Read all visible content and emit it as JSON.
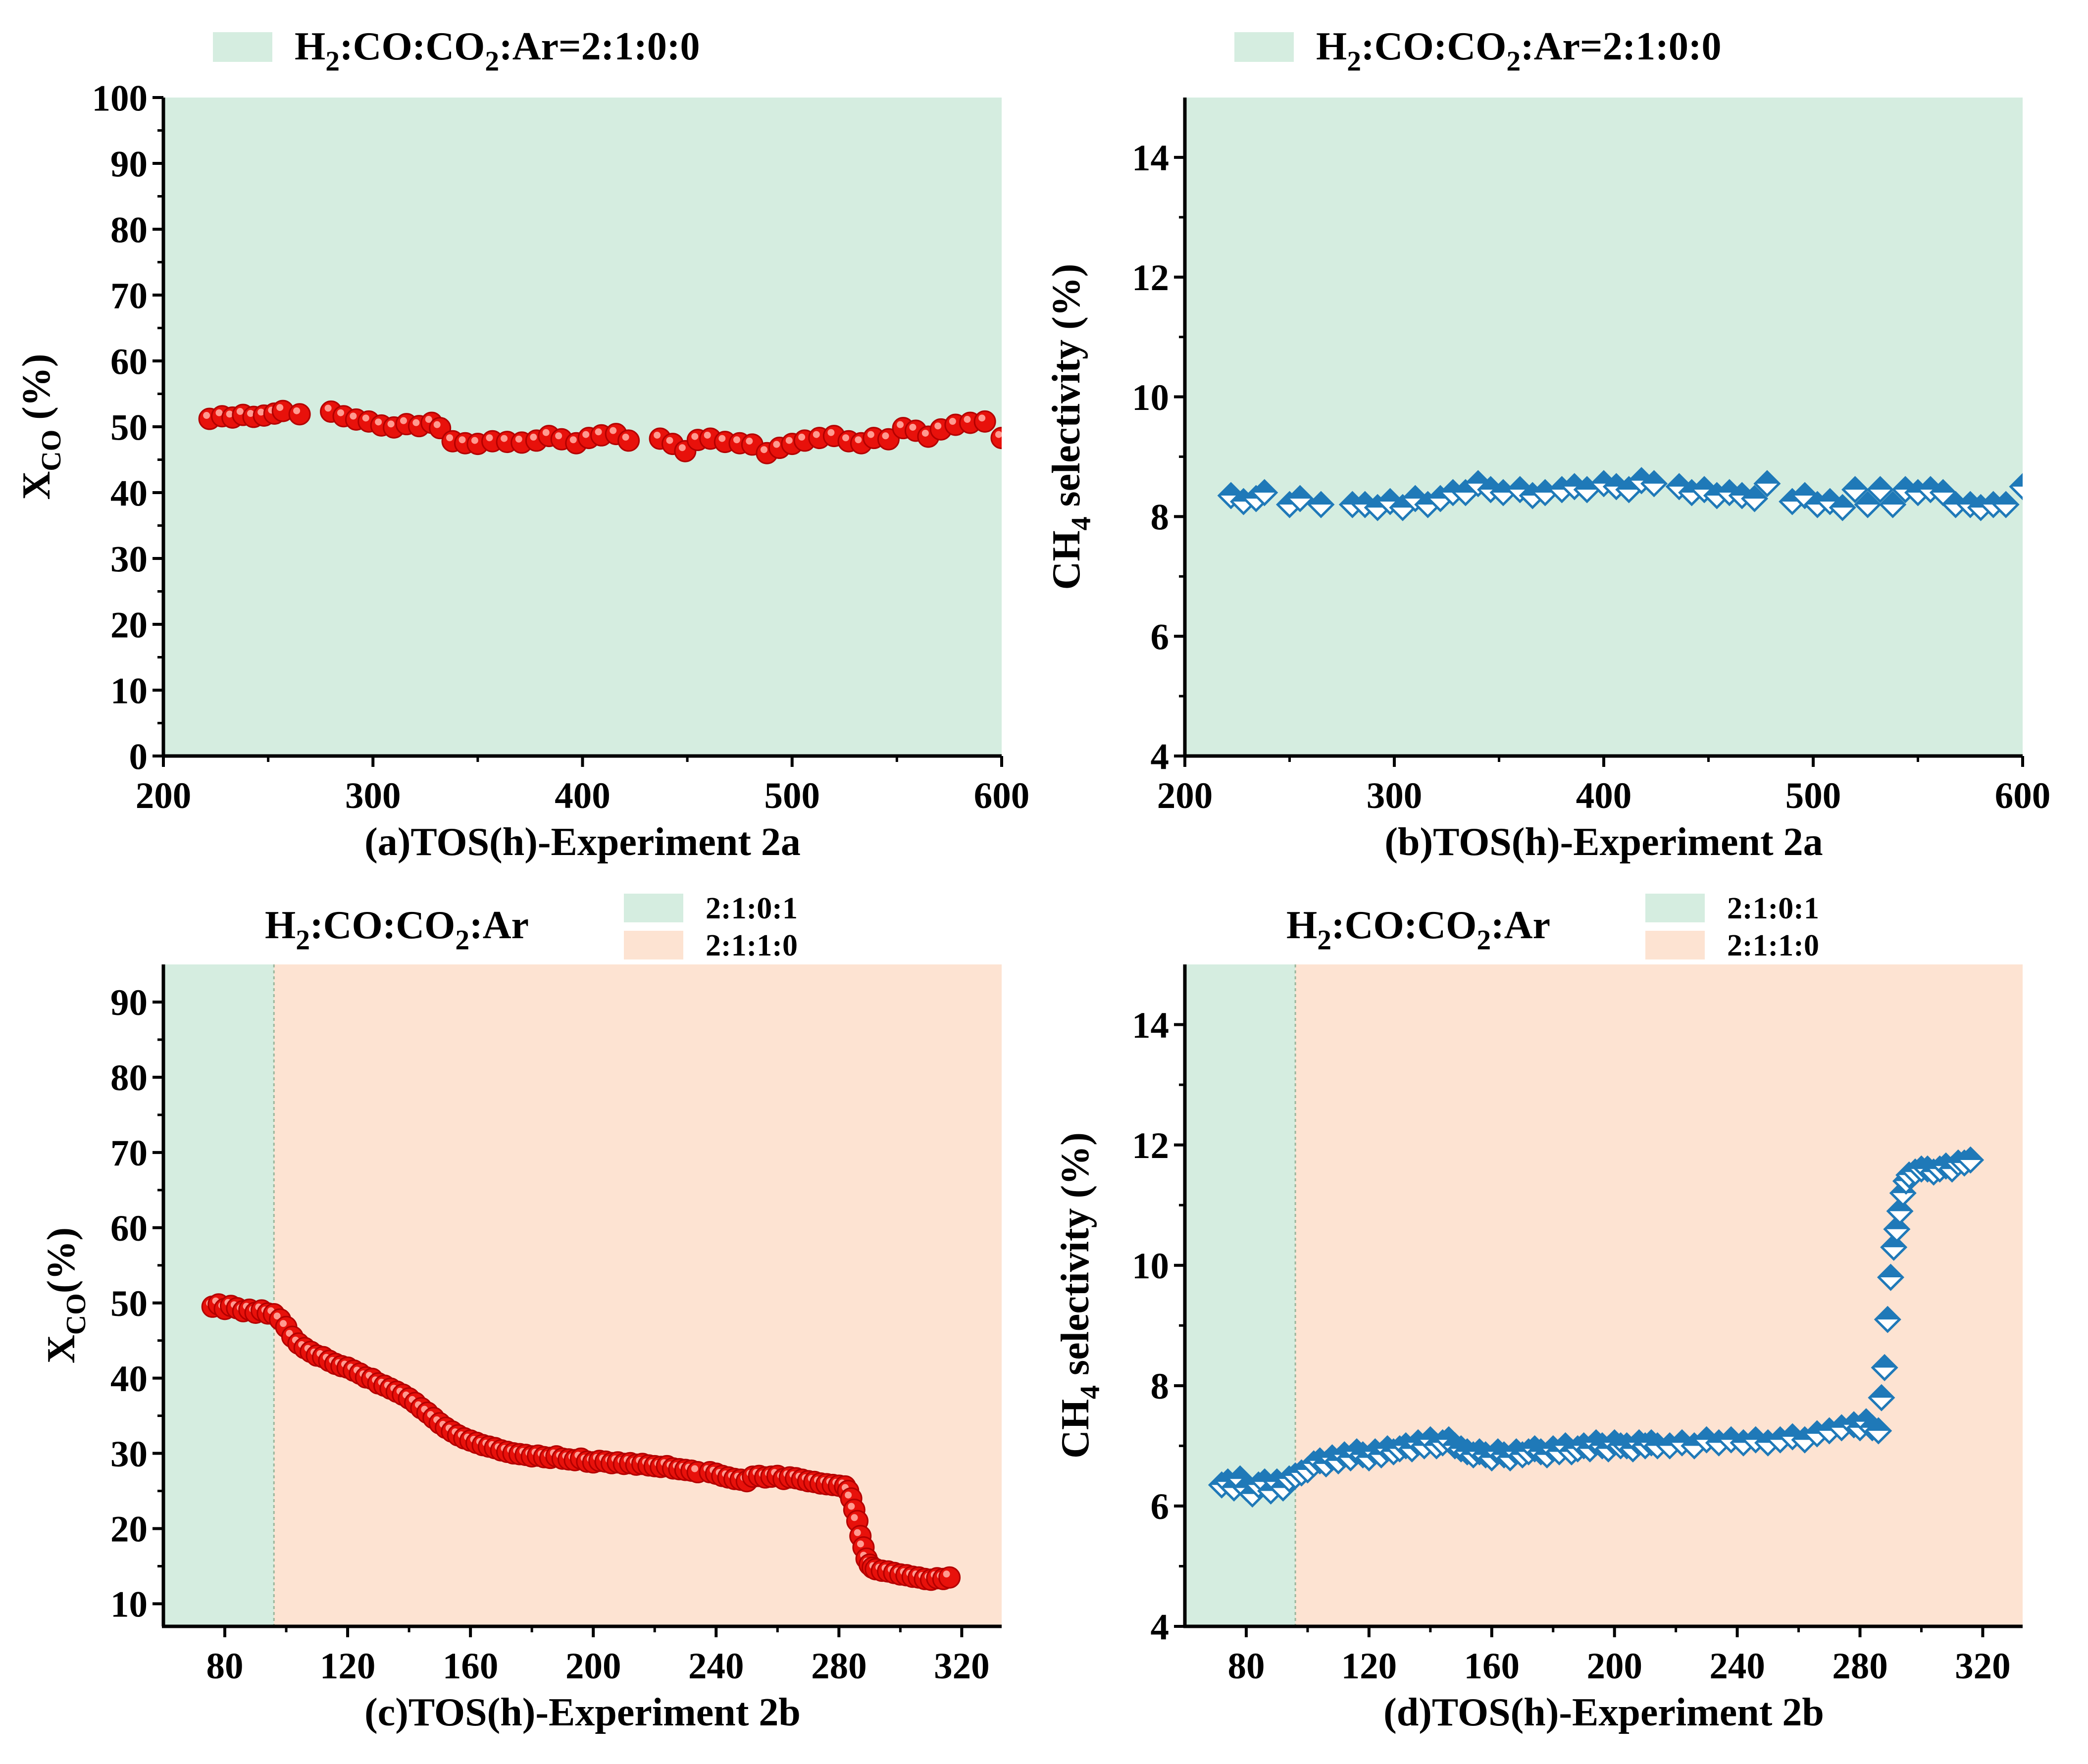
{
  "figure_title": "",
  "colors": {
    "green_region": "#d5ede0",
    "orange_region": "#fde3d2",
    "red_marker": "#e8110b",
    "red_marker_light": "#ff9a90",
    "blue_marker": "#1f79b8",
    "axis": "#000000"
  },
  "chart_data": [
    {
      "id": "a",
      "type": "scatter",
      "marker": "circle",
      "xlabel": "(a)TOS(h)-Experiment 2a",
      "ylabel_main": "X",
      "ylabel_sub": "CO",
      "ylabel_tail": " (%)",
      "xlim": [
        200,
        600
      ],
      "ylim": [
        0,
        100
      ],
      "xticks": [
        200,
        300,
        400,
        500,
        600
      ],
      "yticks": [
        0,
        10,
        20,
        30,
        40,
        50,
        60,
        70,
        80,
        90,
        100
      ],
      "legend": {
        "style": "single",
        "prefix": "",
        "entries": [
          {
            "label": "H2:CO:CO2:Ar=2:1:0:0",
            "color": "green"
          }
        ]
      },
      "regions": [
        {
          "from": 200,
          "to": 600,
          "color": "green"
        }
      ],
      "series": [
        {
          "name": "X_CO",
          "x": [
            222,
            228,
            233,
            238,
            243,
            248,
            253,
            257,
            265,
            280,
            286,
            292,
            298,
            304,
            310,
            316,
            322,
            328,
            332,
            338,
            344,
            350,
            357,
            364,
            371,
            378,
            384,
            390,
            397,
            403,
            409,
            416,
            422,
            437,
            443,
            449,
            455,
            461,
            468,
            475,
            481,
            488,
            494,
            500,
            506,
            513,
            520,
            527,
            533,
            539,
            546,
            553,
            559,
            565,
            571,
            578,
            585,
            592,
            600
          ],
          "y": [
            51.2,
            51.6,
            51.4,
            51.8,
            51.5,
            51.7,
            52.0,
            52.4,
            51.9,
            52.3,
            51.6,
            51.1,
            50.8,
            50.2,
            49.9,
            50.4,
            50.1,
            50.6,
            49.8,
            47.8,
            47.5,
            47.4,
            47.8,
            47.7,
            47.6,
            47.9,
            48.6,
            48.1,
            47.5,
            48.3,
            48.7,
            48.9,
            47.9,
            48.2,
            47.4,
            46.3,
            48.0,
            48.2,
            47.7,
            47.5,
            47.3,
            46.0,
            46.8,
            47.4,
            47.9,
            48.3,
            48.6,
            47.8,
            47.5,
            48.3,
            48.1,
            49.8,
            49.4,
            48.5,
            49.6,
            50.3,
            50.6,
            50.8,
            48.3
          ]
        }
      ]
    },
    {
      "id": "b",
      "type": "scatter",
      "marker": "diamond",
      "xlabel": "(b)TOS(h)-Experiment 2a",
      "ylabel_main": "CH",
      "ylabel_sub": "4",
      "ylabel_tail": "  selectivity (%)",
      "xlim": [
        200,
        600
      ],
      "ylim": [
        4,
        15
      ],
      "xticks": [
        200,
        300,
        400,
        500,
        600
      ],
      "yticks": [
        4,
        6,
        8,
        10,
        12,
        14
      ],
      "legend": {
        "style": "single",
        "prefix": "",
        "entries": [
          {
            "label": "H2:CO:CO2:Ar=2:1:0:0",
            "color": "green"
          }
        ]
      },
      "regions": [
        {
          "from": 200,
          "to": 600,
          "color": "green"
        }
      ],
      "series": [
        {
          "name": "CH4 selectivity",
          "x": [
            222,
            228,
            234,
            238,
            250,
            255,
            265,
            280,
            286,
            292,
            298,
            304,
            310,
            316,
            322,
            328,
            334,
            340,
            346,
            352,
            360,
            366,
            372,
            380,
            386,
            392,
            400,
            406,
            412,
            418,
            424,
            436,
            442,
            448,
            454,
            460,
            466,
            472,
            478,
            490,
            496,
            502,
            508,
            514,
            520,
            526,
            532,
            538,
            544,
            550,
            556,
            562,
            568,
            575,
            580,
            586,
            592,
            600
          ],
          "y": [
            8.35,
            8.25,
            8.3,
            8.4,
            8.2,
            8.3,
            8.2,
            8.2,
            8.2,
            8.15,
            8.25,
            8.15,
            8.3,
            8.2,
            8.3,
            8.4,
            8.4,
            8.55,
            8.45,
            8.4,
            8.45,
            8.35,
            8.4,
            8.45,
            8.5,
            8.45,
            8.55,
            8.5,
            8.45,
            8.6,
            8.55,
            8.5,
            8.4,
            8.45,
            8.35,
            8.4,
            8.35,
            8.3,
            8.55,
            8.25,
            8.35,
            8.2,
            8.25,
            8.15,
            8.45,
            8.2,
            8.45,
            8.2,
            8.45,
            8.4,
            8.45,
            8.4,
            8.2,
            8.2,
            8.15,
            8.2,
            8.2,
            8.5
          ]
        }
      ]
    },
    {
      "id": "c",
      "type": "scatter",
      "marker": "circle",
      "xlabel": "(c)TOS(h)-Experiment 2b",
      "ylabel_main": "X",
      "ylabel_sub": "CO",
      "ylabel_tail": "(%)",
      "xlim": [
        60,
        333
      ],
      "ylim": [
        7,
        95
      ],
      "xticks": [
        80,
        120,
        160,
        200,
        240,
        280,
        320
      ],
      "yticks": [
        10,
        20,
        30,
        40,
        50,
        60,
        70,
        80,
        90
      ],
      "legend": {
        "style": "stacked",
        "prefix": "H2:CO:CO2:Ar",
        "entries": [
          {
            "label": "2:1:0:1",
            "color": "green"
          },
          {
            "label": "2:1:1:0",
            "color": "orange"
          }
        ]
      },
      "regions": [
        {
          "from": 60,
          "to": 96,
          "color": "green"
        },
        {
          "from": 96,
          "to": 333,
          "color": "orange"
        }
      ],
      "series": [
        {
          "name": "X_CO",
          "x": [
            76,
            78,
            80,
            82,
            84,
            86,
            88,
            90,
            92,
            94,
            96,
            98,
            100,
            102,
            104,
            106,
            108,
            110,
            112,
            114,
            116,
            118,
            120,
            122,
            124,
            126,
            128,
            130,
            132,
            134,
            136,
            138,
            140,
            142,
            144,
            146,
            148,
            150,
            152,
            154,
            156,
            158,
            160,
            162,
            164,
            166,
            168,
            170,
            172,
            174,
            176,
            178,
            180,
            182,
            184,
            186,
            188,
            190,
            192,
            194,
            196,
            198,
            200,
            202,
            204,
            206,
            208,
            210,
            212,
            214,
            216,
            218,
            220,
            222,
            224,
            226,
            228,
            230,
            232,
            234,
            238,
            240,
            242,
            244,
            246,
            248,
            250,
            252,
            254,
            256,
            258,
            260,
            262,
            264,
            266,
            268,
            270,
            272,
            274,
            276,
            278,
            280,
            282,
            283,
            284,
            285,
            286,
            287,
            288,
            289,
            290,
            291,
            292,
            294,
            296,
            298,
            300,
            302,
            304,
            306,
            308,
            310,
            312,
            314,
            316
          ],
          "y": [
            49.5,
            49.8,
            49.2,
            49.6,
            49.3,
            48.9,
            49.1,
            48.7,
            49.0,
            48.6,
            48.5,
            47.8,
            46.8,
            45.5,
            44.6,
            44.0,
            43.5,
            43.0,
            42.8,
            42.3,
            41.9,
            41.6,
            41.4,
            41.0,
            40.6,
            40.1,
            39.9,
            39.3,
            39.0,
            38.6,
            38.2,
            37.8,
            37.3,
            36.7,
            36.0,
            35.4,
            34.7,
            34.0,
            33.4,
            32.9,
            32.4,
            32.0,
            31.7,
            31.4,
            31.1,
            30.9,
            30.7,
            30.4,
            30.2,
            30.0,
            29.9,
            29.8,
            29.6,
            29.7,
            29.5,
            29.4,
            29.6,
            29.3,
            29.2,
            29.1,
            29.3,
            28.9,
            28.8,
            29.0,
            28.9,
            28.7,
            28.8,
            28.6,
            28.7,
            28.5,
            28.6,
            28.4,
            28.3,
            28.2,
            28.3,
            28.0,
            27.9,
            27.8,
            27.7,
            27.5,
            27.5,
            27.3,
            27.0,
            26.8,
            26.6,
            26.5,
            26.3,
            26.9,
            27.0,
            26.8,
            26.9,
            27.0,
            26.6,
            26.8,
            26.7,
            26.5,
            26.3,
            26.2,
            26.0,
            25.9,
            25.8,
            25.7,
            25.6,
            25.0,
            24.0,
            22.5,
            21.0,
            19.0,
            17.5,
            16.0,
            15.2,
            14.8,
            14.6,
            14.4,
            14.3,
            14.1,
            13.9,
            13.8,
            13.6,
            13.5,
            13.3,
            13.2,
            13.4,
            13.3,
            13.5
          ]
        }
      ]
    },
    {
      "id": "d",
      "type": "scatter",
      "marker": "diamond",
      "xlabel": "(d)TOS(h)-Experiment 2b",
      "ylabel_main": "CH",
      "ylabel_sub": "4",
      "ylabel_tail": "  selectivity (%)",
      "xlim": [
        60,
        333
      ],
      "ylim": [
        4,
        15
      ],
      "xticks": [
        80,
        120,
        160,
        200,
        240,
        280,
        320
      ],
      "yticks": [
        4,
        6,
        8,
        10,
        12,
        14
      ],
      "legend": {
        "style": "stacked",
        "prefix": "H2:CO:CO2:Ar",
        "entries": [
          {
            "label": "2:1:0:1",
            "color": "green"
          },
          {
            "label": "2:1:1:0",
            "color": "orange"
          }
        ]
      },
      "regions": [
        {
          "from": 60,
          "to": 96,
          "color": "green"
        },
        {
          "from": 96,
          "to": 333,
          "color": "orange"
        }
      ],
      "series": [
        {
          "name": "CH4 selectivity",
          "x": [
            72,
            74,
            76,
            78,
            80,
            82,
            84,
            86,
            88,
            90,
            92,
            94,
            96,
            98,
            100,
            102,
            104,
            106,
            108,
            110,
            112,
            114,
            116,
            118,
            120,
            122,
            124,
            126,
            128,
            130,
            132,
            134,
            136,
            138,
            140,
            142,
            144,
            146,
            148,
            150,
            152,
            154,
            156,
            158,
            160,
            162,
            164,
            166,
            168,
            170,
            172,
            174,
            176,
            178,
            180,
            182,
            184,
            186,
            188,
            190,
            192,
            194,
            196,
            198,
            200,
            202,
            204,
            206,
            208,
            210,
            212,
            214,
            218,
            222,
            226,
            230,
            234,
            238,
            242,
            246,
            250,
            254,
            258,
            262,
            266,
            270,
            274,
            278,
            280,
            282,
            284,
            286,
            287,
            288,
            289,
            290,
            291,
            292,
            293,
            294,
            295,
            296,
            298,
            300,
            302,
            304,
            306,
            308,
            310,
            312,
            314,
            316
          ],
          "y": [
            6.35,
            6.4,
            6.3,
            6.45,
            6.3,
            6.2,
            6.35,
            6.4,
            6.25,
            6.4,
            6.3,
            6.45,
            6.5,
            6.55,
            6.6,
            6.7,
            6.75,
            6.7,
            6.8,
            6.75,
            6.85,
            6.8,
            6.9,
            6.85,
            6.8,
            6.9,
            6.85,
            6.95,
            6.9,
            6.95,
            7.0,
            6.95,
            7.05,
            7.0,
            7.1,
            7.0,
            7.05,
            7.1,
            7.0,
            6.95,
            6.9,
            6.85,
            6.9,
            6.85,
            6.8,
            6.9,
            6.85,
            6.8,
            6.9,
            6.85,
            6.9,
            6.95,
            6.9,
            6.85,
            6.95,
            6.9,
            7.0,
            6.9,
            6.95,
            7.0,
            6.95,
            7.05,
            7.0,
            6.95,
            7.05,
            7.0,
            7.0,
            6.95,
            7.05,
            7.0,
            7.05,
            7.0,
            7.0,
            7.05,
            7.0,
            7.1,
            7.05,
            7.1,
            7.05,
            7.1,
            7.05,
            7.1,
            7.15,
            7.1,
            7.2,
            7.25,
            7.3,
            7.35,
            7.3,
            7.4,
            7.3,
            7.25,
            7.8,
            8.3,
            9.1,
            9.8,
            10.3,
            10.6,
            10.9,
            11.2,
            11.4,
            11.5,
            11.55,
            11.6,
            11.6,
            11.55,
            11.6,
            11.65,
            11.6,
            11.7,
            11.7,
            11.75
          ]
        }
      ]
    }
  ]
}
